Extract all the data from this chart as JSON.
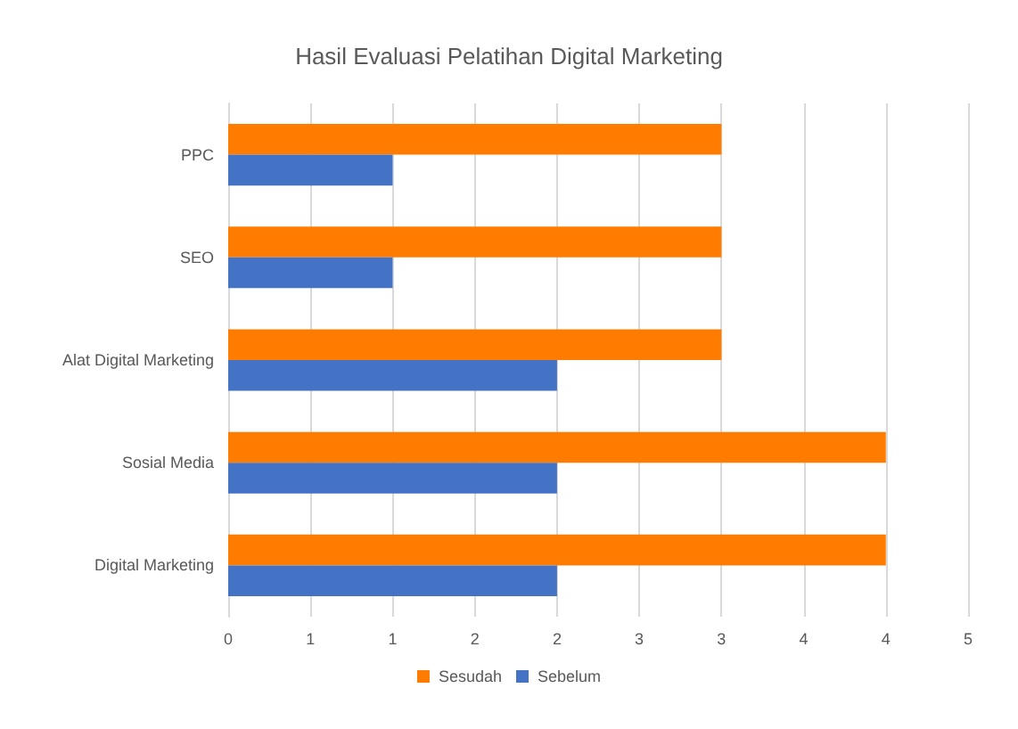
{
  "chart_data": {
    "type": "bar",
    "orientation": "horizontal",
    "title": "Hasil Evaluasi Pelatihan Digital Marketing",
    "categories": [
      "PPC",
      "SEO",
      "Alat Digital Marketing",
      "Sosial Media",
      "Digital Marketing"
    ],
    "series": [
      {
        "name": "Sesudah",
        "color": "#ff7c00",
        "values": [
          3,
          3,
          3,
          4,
          4
        ]
      },
      {
        "name": "Sebelum",
        "color": "#4472c4",
        "values": [
          1,
          1,
          2,
          2,
          2
        ]
      }
    ],
    "xlim": [
      0,
      4.5
    ],
    "xticks": [
      0,
      {
        "value": 0.5,
        "label": "1"
      },
      1,
      {
        "value": 1.5,
        "label": "2"
      },
      2,
      {
        "value": 2.5,
        "label": "3"
      },
      3,
      {
        "value": 3.5,
        "label": "4"
      },
      4,
      {
        "value": 4.5,
        "label": "5"
      }
    ],
    "grid": "x",
    "legend": "bottom"
  }
}
